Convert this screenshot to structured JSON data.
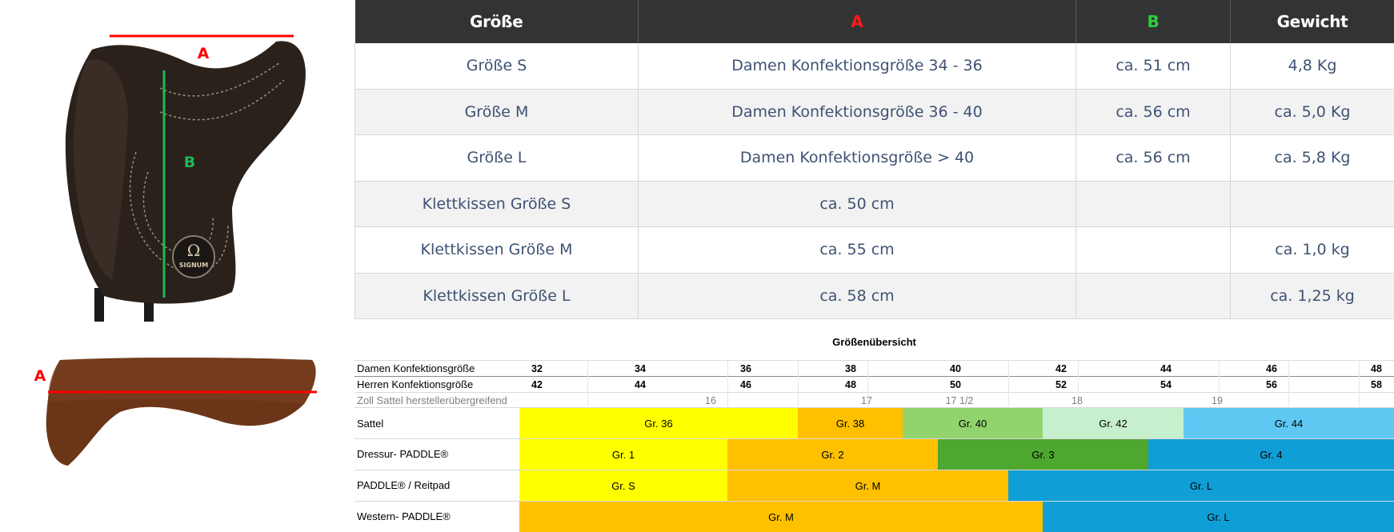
{
  "table": {
    "headers": [
      {
        "text": "Größe",
        "color": "#ffffff"
      },
      {
        "text": "A",
        "color": "#ff1a1a"
      },
      {
        "text": "B",
        "color": "#2ecc40"
      },
      {
        "text": "Gewicht",
        "color": "#ffffff"
      }
    ],
    "rows": [
      [
        "Größe S",
        "Damen Konfektionsgröße 34 - 36",
        "ca. 51 cm",
        "4,8 Kg"
      ],
      [
        "Größe M",
        "Damen Konfektionsgröße 36 - 40",
        "ca. 56 cm",
        "ca. 5,0 Kg"
      ],
      [
        "Größe L",
        "Damen Konfektionsgröße > 40",
        "ca. 56 cm",
        "ca. 5,8 Kg"
      ],
      [
        "Klettkissen Größe S",
        "ca. 50 cm",
        "",
        ""
      ],
      [
        "Klettkissen Größe M",
        "ca. 55 cm",
        "",
        "ca. 1,0 kg"
      ],
      [
        "Klettkissen Größe L",
        "ca. 58 cm",
        "",
        "ca. 1,25 kg"
      ]
    ]
  },
  "images": {
    "saddle_label_a": "A",
    "saddle_label_b": "B",
    "saddle_brand": "SIGNUM",
    "pad_label_a": "A"
  },
  "overview": {
    "title": "Größenübersicht",
    "labels": {
      "damen": "Damen Konfektionsgröße",
      "herren": "Herren Konfektionsgröße",
      "zoll": "Zoll Sattel herstellerübergreifend",
      "sattel": "Sattel",
      "dressur": "Dressur- PADDLE®",
      "paddle": " PADDLE® / Reitpad",
      "western": "Western- PADDLE®"
    },
    "damen": [
      "32",
      "34",
      "36",
      "38",
      "40",
      "42",
      "44",
      "46",
      "48"
    ],
    "herren": [
      "42",
      "44",
      "46",
      "48",
      "50",
      "52",
      "54",
      "56",
      "58"
    ],
    "zoll": [
      "16",
      "17",
      "17 1/2",
      "18",
      "19"
    ],
    "sattel": [
      {
        "label": "Gr. 36",
        "color": "#ffff00"
      },
      {
        "label": "Gr. 38",
        "color": "#ffc000"
      },
      {
        "label": "Gr. 40",
        "color": "#92d36e"
      },
      {
        "label": "Gr. 42",
        "color": "#c6efce"
      },
      {
        "label": "Gr. 44",
        "color": "#5ec8f2"
      }
    ],
    "dressur": [
      {
        "label": "Gr. 1",
        "color": "#ffff00"
      },
      {
        "label": "Gr. 2",
        "color": "#ffc000"
      },
      {
        "label": "Gr. 3",
        "color": "#4ea72e"
      },
      {
        "label": "Gr. 4",
        "color": "#0f9ed5"
      }
    ],
    "paddle": [
      {
        "label": "Gr. S",
        "color": "#ffff00"
      },
      {
        "label": "Gr. M",
        "color": "#ffc000"
      },
      {
        "label": "Gr. L",
        "color": "#0f9ed5"
      }
    ],
    "western": [
      {
        "label": "Gr. M",
        "color": "#ffc000"
      },
      {
        "label": "Gr. L",
        "color": "#0f9ed5"
      }
    ]
  }
}
